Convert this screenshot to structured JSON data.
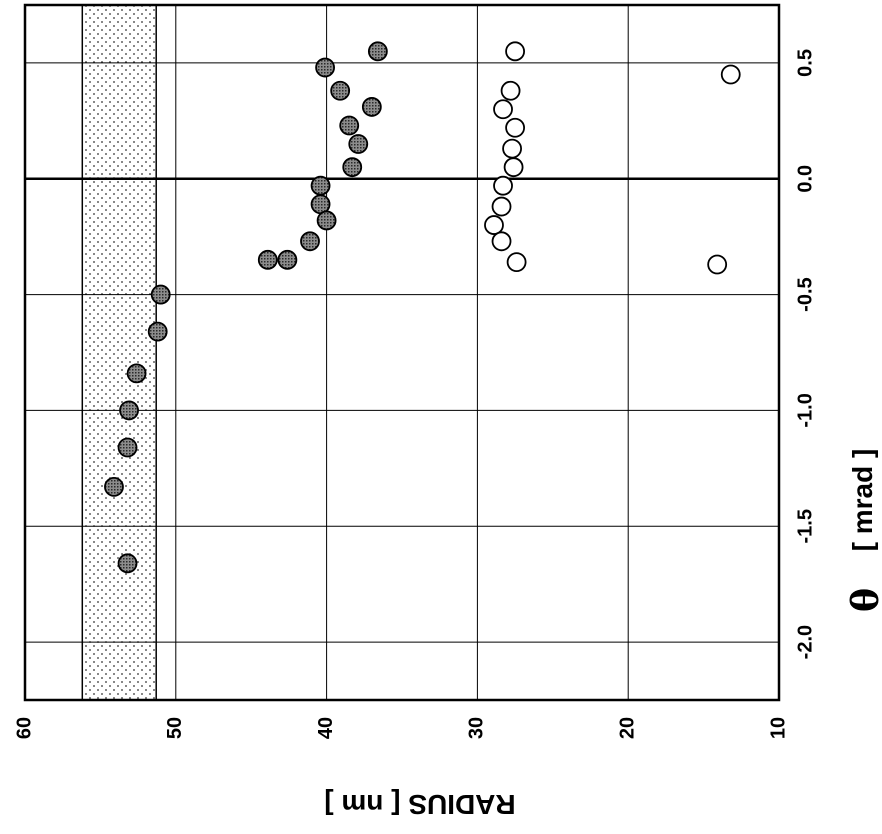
{
  "chart_data": {
    "type": "scatter",
    "orientation": "rotated-90",
    "x": {
      "label_symbol": "θ",
      "label": "[ mrad ]",
      "range": [
        -2.25,
        0.75
      ],
      "ticks": [
        -2.0,
        -1.5,
        -1.0,
        -0.5,
        0.0,
        0.5
      ],
      "tick_labels": [
        "-2.0",
        "-1.5",
        "-1.0",
        "-0.5",
        "0.0",
        "0.5"
      ]
    },
    "y": {
      "label": "RADIUS [ nm ]",
      "range": [
        10,
        60
      ],
      "reversed_display": true,
      "ticks": [
        60,
        50,
        40,
        30,
        20,
        10
      ],
      "tick_labels": [
        "60",
        "50",
        "40",
        "30",
        "20",
        "10"
      ]
    },
    "grid": true,
    "zero_line": true,
    "shaded_band": {
      "y_range": [
        51.3,
        56.2
      ],
      "pattern": "dots"
    },
    "series": [
      {
        "style": "filled-dotted",
        "color": "#777777",
        "points": [
          [
            0.55,
            36.6
          ],
          [
            0.48,
            40.1
          ],
          [
            0.38,
            39.1
          ],
          [
            0.31,
            37.0
          ],
          [
            0.23,
            38.5
          ],
          [
            0.15,
            37.9
          ],
          [
            0.05,
            38.3
          ],
          [
            -0.03,
            40.4
          ],
          [
            -0.11,
            40.4
          ],
          [
            -0.18,
            40.0
          ],
          [
            -0.27,
            41.1
          ],
          [
            -0.35,
            42.6
          ],
          [
            -0.35,
            43.9
          ],
          [
            -0.5,
            51.0
          ],
          [
            -0.66,
            51.2
          ],
          [
            -0.84,
            52.6
          ],
          [
            -1.0,
            53.1
          ],
          [
            -1.16,
            53.2
          ],
          [
            -1.33,
            54.1
          ],
          [
            -1.66,
            53.2
          ]
        ]
      },
      {
        "style": "open",
        "color": "#000000",
        "points": [
          [
            0.55,
            27.5
          ],
          [
            0.45,
            13.2
          ],
          [
            0.38,
            27.8
          ],
          [
            0.3,
            28.3
          ],
          [
            0.22,
            27.5
          ],
          [
            0.13,
            27.7
          ],
          [
            0.05,
            27.6
          ],
          [
            -0.03,
            28.3
          ],
          [
            -0.12,
            28.4
          ],
          [
            -0.2,
            28.9
          ],
          [
            -0.27,
            28.4
          ],
          [
            -0.36,
            27.4
          ],
          [
            -0.37,
            14.1
          ]
        ]
      }
    ]
  }
}
